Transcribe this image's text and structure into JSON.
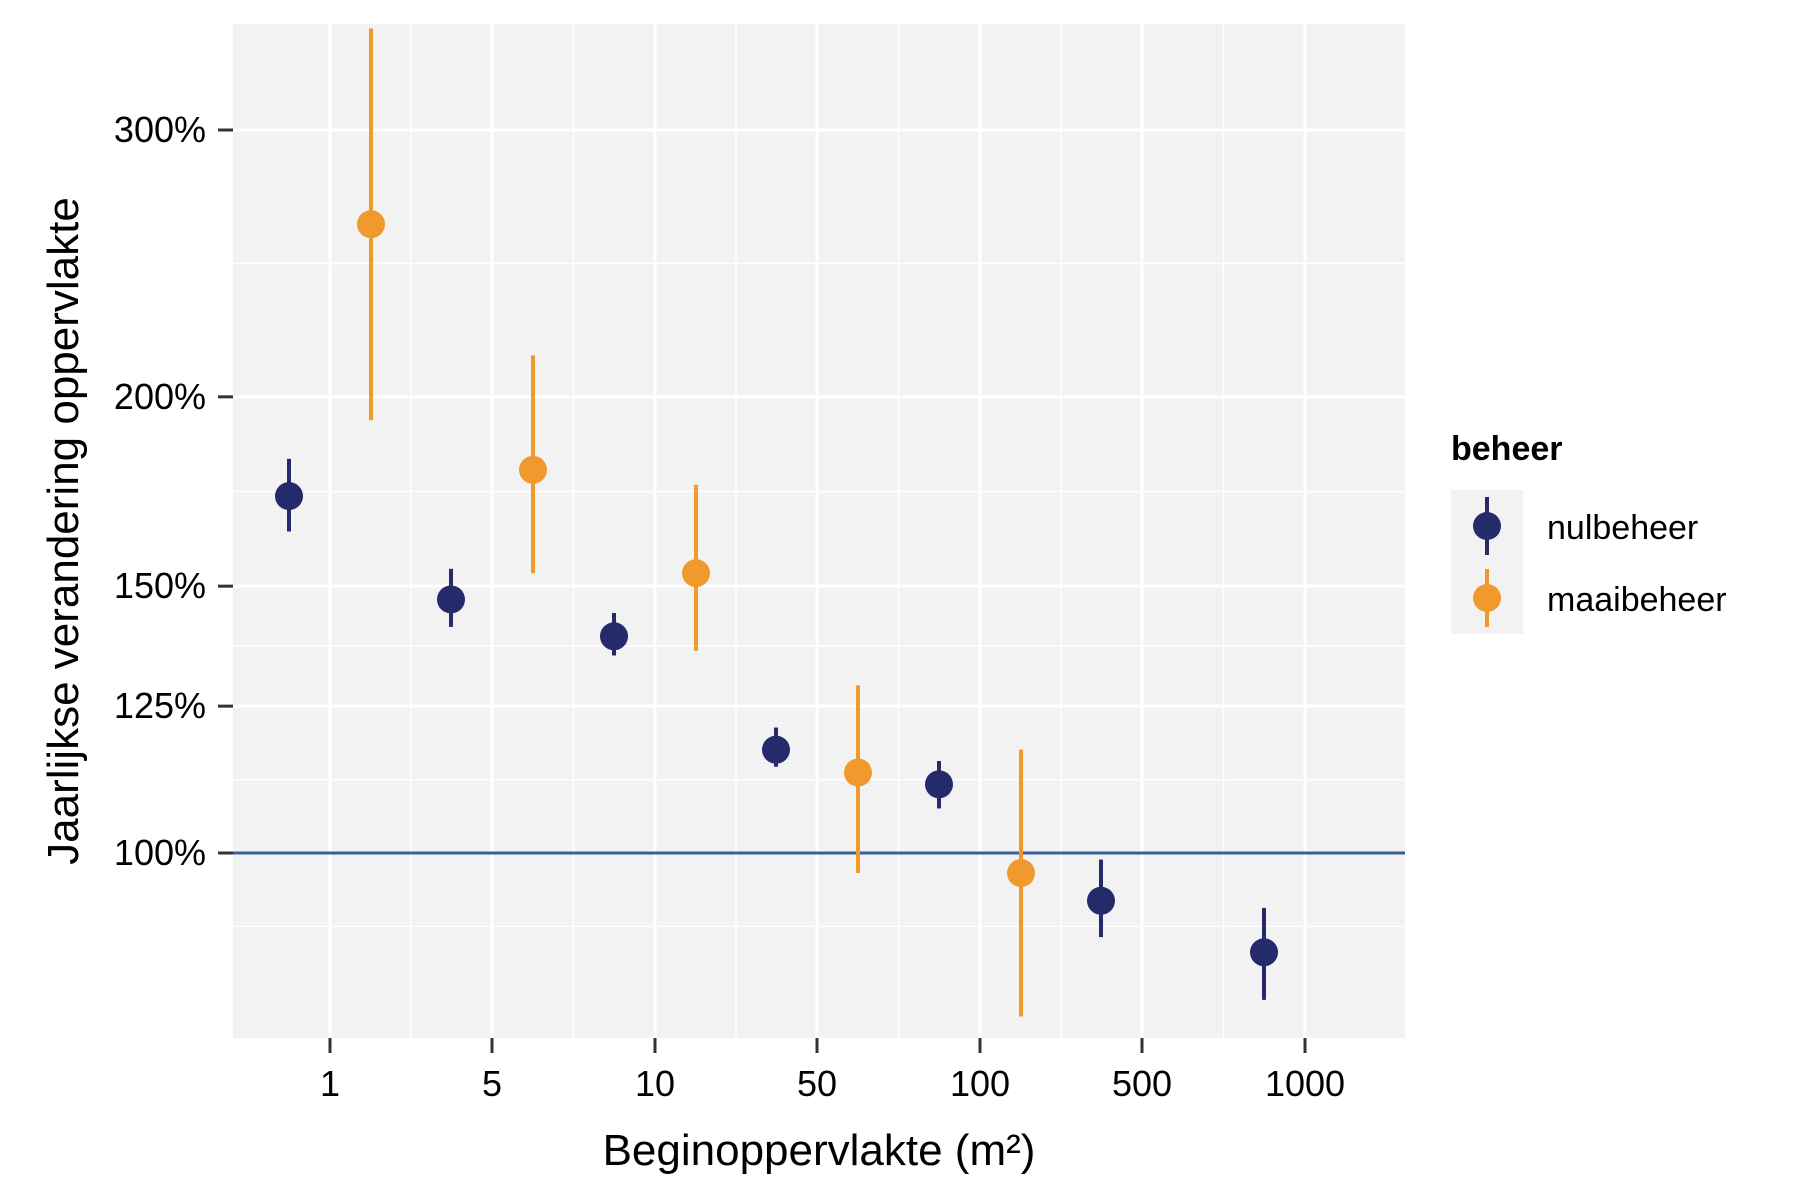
{
  "chart_data": {
    "type": "scatter",
    "title": "",
    "xlabel": "Beginoppervlakte (m²)",
    "ylabel": "Jaarlijkse verandering oppervlakte",
    "x_scale": "log",
    "y_scale": "log",
    "x_ticks": [
      1,
      5,
      10,
      50,
      100,
      500,
      1000
    ],
    "x_tick_labels": [
      "1",
      "5",
      "10",
      "50",
      "100",
      "500",
      "1000"
    ],
    "y_ticks": [
      100,
      125,
      150,
      200,
      300
    ],
    "y_tick_labels": [
      "100%",
      "125%",
      "150%",
      "200%",
      "300%"
    ],
    "y_unit": "%",
    "ylim": [
      73,
      365
    ],
    "reference_line": 100,
    "reference_line_color": "#3b5f9a",
    "grid": true,
    "legend_position": "right",
    "legend": {
      "title": "beheer",
      "entries": [
        "nulbeheer",
        "maaibeheer"
      ]
    },
    "series": [
      {
        "name": "nulbeheer",
        "color": "#252a6b",
        "points": [
          {
            "x": 1,
            "y": 172,
            "lower": 163,
            "upper": 182
          },
          {
            "x": 5,
            "y": 147,
            "lower": 141,
            "upper": 154
          },
          {
            "x": 10,
            "y": 139,
            "lower": 135,
            "upper": 144
          },
          {
            "x": 50,
            "y": 117,
            "lower": 114,
            "upper": 121
          },
          {
            "x": 100,
            "y": 111,
            "lower": 107,
            "upper": 115
          },
          {
            "x": 500,
            "y": 93,
            "lower": 88,
            "upper": 99
          },
          {
            "x": 1000,
            "y": 86,
            "lower": 80,
            "upper": 92
          }
        ]
      },
      {
        "name": "maaibeheer",
        "color": "#f09a2e",
        "points": [
          {
            "x": 1,
            "y": 260,
            "lower": 193,
            "upper": 350
          },
          {
            "x": 5,
            "y": 179,
            "lower": 153,
            "upper": 213
          },
          {
            "x": 10,
            "y": 153,
            "lower": 136,
            "upper": 175
          },
          {
            "x": 50,
            "y": 113,
            "lower": 97,
            "upper": 129
          },
          {
            "x": 100,
            "y": 97,
            "lower": 78,
            "upper": 117
          }
        ]
      }
    ]
  }
}
